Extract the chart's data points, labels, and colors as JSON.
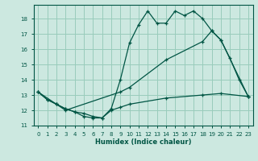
{
  "xlabel": "Humidex (Indice chaleur)",
  "bg_color": "#cce8e0",
  "grid_color": "#99ccbb",
  "line_color": "#005544",
  "xlim": [
    -0.5,
    23.5
  ],
  "ylim": [
    11,
    18.9
  ],
  "yticks": [
    11,
    12,
    13,
    14,
    15,
    16,
    17,
    18
  ],
  "xticks": [
    0,
    1,
    2,
    3,
    4,
    5,
    6,
    7,
    8,
    9,
    10,
    11,
    12,
    13,
    14,
    15,
    16,
    17,
    18,
    19,
    20,
    21,
    22,
    23
  ],
  "curve1_x": [
    0,
    1,
    2,
    3,
    4,
    5,
    6,
    7,
    8,
    9,
    10,
    11,
    12,
    13,
    14,
    15,
    16,
    17,
    18,
    19,
    20,
    21,
    22,
    23
  ],
  "curve1_y": [
    13.2,
    12.7,
    12.4,
    12.1,
    11.9,
    11.6,
    11.5,
    11.5,
    12.1,
    14.0,
    16.4,
    17.6,
    18.5,
    17.7,
    17.7,
    18.5,
    18.2,
    18.5,
    18.0,
    17.2,
    16.6,
    15.4,
    14.0,
    12.9
  ],
  "curve2_x": [
    0,
    1,
    2,
    3,
    9,
    10,
    14,
    18,
    19,
    20,
    23
  ],
  "curve2_y": [
    13.2,
    12.7,
    12.4,
    12.0,
    13.2,
    13.5,
    15.3,
    16.5,
    17.2,
    16.6,
    12.9
  ],
  "curve3_x": [
    0,
    2,
    3,
    4,
    5,
    6,
    7,
    8,
    9,
    10,
    14,
    18,
    20,
    23
  ],
  "curve3_y": [
    13.2,
    12.4,
    12.1,
    11.9,
    11.8,
    11.6,
    11.5,
    12.0,
    12.2,
    12.4,
    12.8,
    13.0,
    13.1,
    12.9
  ]
}
